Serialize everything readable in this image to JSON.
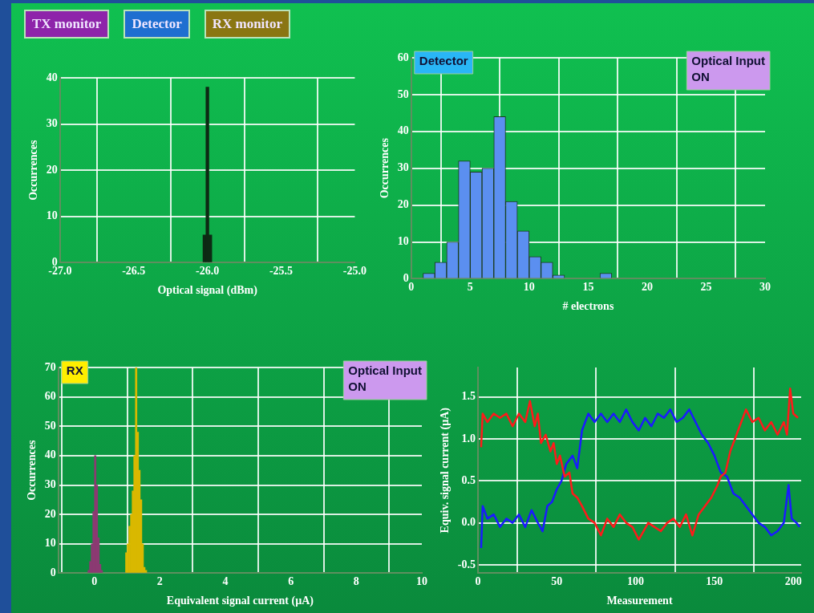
{
  "chart_data": [
    {
      "type": "other",
      "annotations": [
        "TX monitor",
        "Detector",
        "RX monitor"
      ],
      "colors": [
        "#8e24aa",
        "#1e6fd0",
        "#8a7612"
      ]
    },
    {
      "type": "histogram",
      "xlabel": "Optical signal (dBm)",
      "ylabel": "Occurrences",
      "color": "#0d2a14",
      "bins": [
        -26.03,
        -26.01,
        -25.99,
        -25.97
      ],
      "values": [
        6,
        38,
        6
      ],
      "xlim": [
        -27,
        -25
      ],
      "xticks": [
        {
          "value": -27,
          "label": "-27.0"
        },
        {
          "value": -26.5,
          "label": "-26.5"
        },
        {
          "value": -26,
          "label": "-26.0"
        },
        {
          "value": -25.5,
          "label": "-25.5"
        },
        {
          "value": -25,
          "label": "-25.0"
        }
      ],
      "ylim": [
        0,
        40
      ],
      "yticks": [
        0,
        10,
        20,
        30,
        40
      ],
      "grid": true,
      "legend": false
    },
    {
      "type": "histogram",
      "xlabel": "# electrons",
      "ylabel": "Occurrences",
      "color": "#5b8ff0",
      "bins": [
        1,
        2,
        3,
        4,
        5,
        6,
        7,
        8,
        9,
        10,
        11,
        12,
        13,
        14,
        15,
        16,
        17
      ],
      "values": [
        1.5,
        4.5,
        10,
        32,
        29,
        30,
        44,
        21,
        13,
        6,
        4.5,
        1,
        0,
        0,
        0,
        1.5
      ],
      "xlim": [
        0,
        30
      ],
      "xticks": [
        0,
        5,
        10,
        15,
        20,
        25,
        30
      ],
      "ylim": [
        0,
        60
      ],
      "yticks": [
        0,
        10,
        20,
        30,
        40,
        50,
        60
      ],
      "grid": true,
      "legend": false,
      "annotations": [
        "Detector",
        "Optical Input ON"
      ]
    },
    {
      "type": "histogram",
      "xlabel": "Equivalent signal current (µA)",
      "ylabel": "Occurrences",
      "bins": [
        -0.2,
        -0.15,
        -0.1,
        -0.05,
        0,
        0.05,
        0.1,
        0.15,
        0.2,
        0.25,
        0.3,
        0.35,
        0.4,
        0.45,
        0.5,
        0.55,
        0.6,
        0.65,
        0.7,
        0.75,
        0.8,
        0.85,
        0.9,
        0.95,
        1,
        1.05,
        1.1,
        1.15,
        1.2,
        1.25,
        1.3,
        1.35,
        1.4,
        1.45,
        1.5,
        1.55,
        1.6
      ],
      "series": [
        {
          "color": "#8b3a72",
          "values": [
            1,
            4,
            10,
            21,
            40,
            30,
            12,
            3,
            1,
            null,
            null,
            null,
            null,
            null,
            null,
            null,
            null,
            null,
            null,
            null,
            null,
            null,
            null,
            null,
            null,
            null,
            null,
            null,
            null,
            null,
            null,
            null,
            null,
            null,
            null,
            null
          ]
        },
        {
          "color": "#d9b800",
          "values": [
            null,
            null,
            null,
            null,
            null,
            null,
            null,
            null,
            null,
            null,
            null,
            null,
            null,
            null,
            null,
            null,
            null,
            null,
            null,
            null,
            null,
            null,
            null,
            7,
            10,
            16,
            20,
            28,
            40,
            70,
            48,
            35,
            25,
            10,
            2,
            1
          ]
        }
      ],
      "xlim": [
        -1.1,
        10
      ],
      "xticks": [
        0,
        2,
        4,
        6,
        8,
        10
      ],
      "ylim": [
        0,
        70
      ],
      "yticks": [
        0,
        10,
        20,
        30,
        40,
        50,
        60,
        70
      ],
      "grid": true,
      "legend": false,
      "annotations": [
        "RX",
        "Optical Input ON"
      ]
    },
    {
      "type": "line",
      "xlabel": "Measurement",
      "ylabel": "Equiv. signal current (µA)",
      "series": [
        {
          "color": "#ff1a1a",
          "x": [
            2,
            3,
            6,
            10,
            14,
            18,
            22,
            26,
            30,
            33,
            36,
            38,
            40,
            43,
            46,
            48,
            50,
            52,
            55,
            58,
            60,
            63,
            66,
            70,
            74,
            78,
            82,
            86,
            90,
            94,
            98,
            102,
            105,
            108,
            112,
            116,
            120,
            124,
            128,
            132,
            136,
            140,
            144,
            148,
            152,
            154,
            157,
            160,
            163,
            166,
            170,
            174,
            178,
            182,
            186,
            190,
            194,
            196,
            198,
            200,
            203
          ],
          "values": [
            0.9,
            1.3,
            1.2,
            1.3,
            1.25,
            1.3,
            1.15,
            1.3,
            1.2,
            1.45,
            1.15,
            1.3,
            0.95,
            1.05,
            0.85,
            0.95,
            0.7,
            0.8,
            0.55,
            0.6,
            0.35,
            0.3,
            0.2,
            0.05,
            0,
            -0.15,
            0.05,
            -0.05,
            0.1,
            0,
            -0.05,
            -0.2,
            -0.1,
            0,
            -0.05,
            -0.1,
            0,
            0.05,
            -0.05,
            0.1,
            -0.15,
            0.1,
            0.2,
            0.3,
            0.45,
            0.55,
            0.6,
            0.85,
            1,
            1.15,
            1.35,
            1.2,
            1.25,
            1.1,
            1.2,
            1.05,
            1.2,
            1.05,
            1.6,
            1.3,
            1.25
          ]
        },
        {
          "color": "#1a1aff",
          "x": [
            2,
            3,
            6,
            10,
            14,
            18,
            22,
            26,
            30,
            34,
            38,
            41,
            44,
            47,
            50,
            53,
            56,
            60,
            63,
            66,
            70,
            74,
            78,
            82,
            86,
            90,
            94,
            98,
            102,
            106,
            110,
            114,
            118,
            122,
            126,
            130,
            134,
            138,
            142,
            146,
            150,
            154,
            158,
            162,
            166,
            170,
            174,
            178,
            182,
            186,
            190,
            194,
            197,
            199,
            202,
            204
          ],
          "values": [
            -0.3,
            0.2,
            0.05,
            0.1,
            -0.05,
            0.05,
            0,
            0.1,
            -0.05,
            0.15,
            0,
            -0.1,
            0.2,
            0.25,
            0.4,
            0.5,
            0.7,
            0.8,
            0.65,
            1.1,
            1.3,
            1.2,
            1.3,
            1.2,
            1.3,
            1.2,
            1.35,
            1.2,
            1.1,
            1.25,
            1.15,
            1.3,
            1.25,
            1.35,
            1.2,
            1.25,
            1.35,
            1.2,
            1.05,
            0.95,
            0.8,
            0.6,
            0.55,
            0.35,
            0.3,
            0.2,
            0.1,
            0,
            -0.05,
            -0.15,
            -0.1,
            0,
            0.45,
            0.05,
            0,
            -0.05
          ]
        }
      ],
      "xlim": [
        0,
        205
      ],
      "xticks": [
        0,
        50,
        100,
        150,
        200
      ],
      "ylim": [
        -0.6,
        1.85
      ],
      "yticks": [
        {
          "value": -0.5,
          "label": "-0.5"
        },
        {
          "value": 0,
          "label": "0.0"
        },
        {
          "value": 0.5,
          "label": "0.5"
        },
        {
          "value": 1,
          "label": "1.0"
        },
        {
          "value": 1.5,
          "label": "1.5"
        }
      ],
      "grid": true,
      "legend": false,
      "marker": "none"
    }
  ]
}
